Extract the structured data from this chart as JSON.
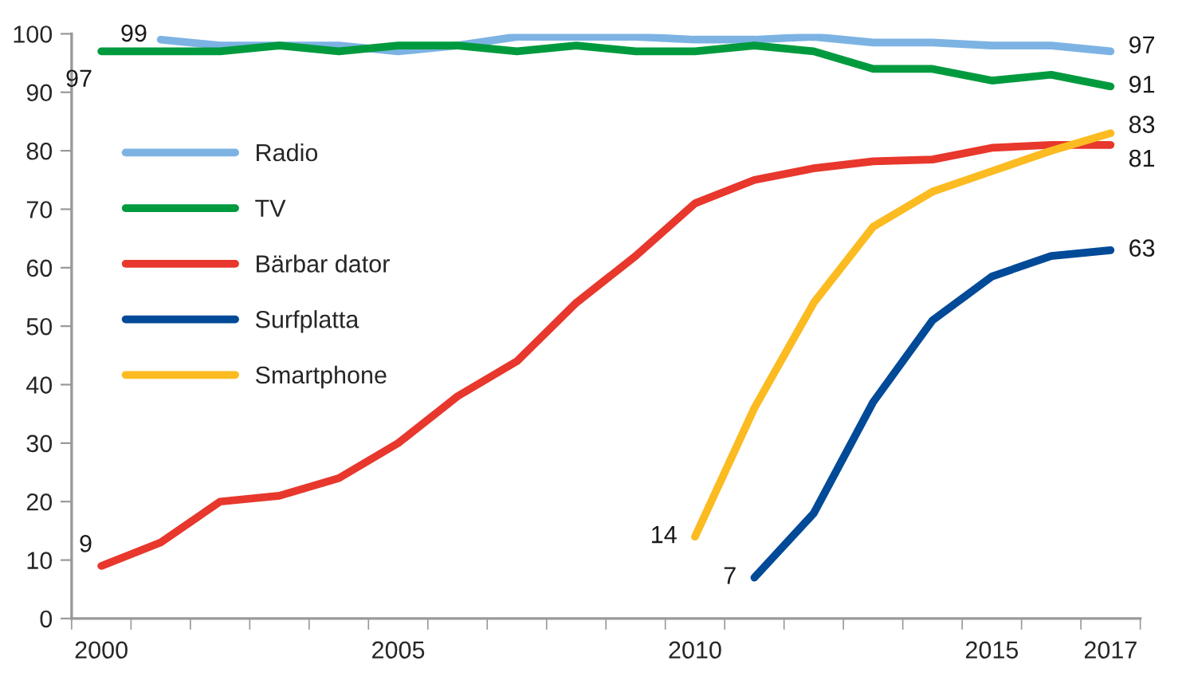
{
  "chart_data": {
    "type": "line",
    "categories": [
      "2000",
      null,
      null,
      null,
      null,
      "2005",
      null,
      null,
      null,
      null,
      "2010",
      null,
      null,
      null,
      null,
      "2015",
      null,
      "2017"
    ],
    "ylim": [
      0,
      100
    ],
    "yticks": [
      0,
      10,
      20,
      30,
      40,
      50,
      60,
      70,
      80,
      90,
      100
    ],
    "grid": false,
    "legend": "left",
    "marker": "none",
    "line_style": "solid",
    "series": [
      {
        "name": "Radio",
        "color": "#7cb3e3",
        "values": [
          null,
          99,
          98,
          98,
          98,
          97,
          98,
          99.5,
          99.5,
          99.5,
          99,
          99,
          99.5,
          98.5,
          98.5,
          98,
          98,
          97
        ],
        "value_labels": [
          null,
          "99",
          null,
          null,
          null,
          null,
          null,
          null,
          null,
          null,
          null,
          null,
          null,
          null,
          null,
          null,
          null,
          "97"
        ]
      },
      {
        "name": "TV",
        "color": "#009a3e",
        "values": [
          97,
          97,
          97,
          98,
          97,
          98,
          98,
          97,
          98,
          97,
          97,
          98,
          97,
          94,
          94,
          92,
          93,
          91
        ],
        "value_labels": [
          "97",
          null,
          null,
          null,
          null,
          null,
          null,
          null,
          null,
          null,
          null,
          null,
          null,
          null,
          null,
          null,
          null,
          "91"
        ]
      },
      {
        "name": "Bärbar dator",
        "color": "#e8372c",
        "values": [
          9,
          13,
          20,
          21,
          24,
          30,
          38,
          44,
          54,
          62,
          71,
          75,
          77,
          78.2,
          78.5,
          80.5,
          81,
          81
        ],
        "value_labels": [
          "9",
          null,
          null,
          null,
          null,
          null,
          null,
          null,
          null,
          null,
          null,
          null,
          null,
          null,
          null,
          null,
          null,
          "81"
        ]
      },
      {
        "name": "Surfplatta",
        "color": "#004a98",
        "values": [
          null,
          null,
          null,
          null,
          null,
          null,
          null,
          null,
          null,
          null,
          null,
          7,
          18,
          37,
          51,
          58.5,
          62,
          63
        ],
        "value_labels": [
          null,
          null,
          null,
          null,
          null,
          null,
          null,
          null,
          null,
          null,
          null,
          "7",
          null,
          null,
          null,
          null,
          null,
          "63"
        ]
      },
      {
        "name": "Smartphone",
        "color": "#fbbb21",
        "values": [
          null,
          null,
          null,
          null,
          null,
          null,
          null,
          null,
          null,
          null,
          14,
          36,
          54,
          67,
          73,
          76.5,
          80,
          83
        ],
        "value_labels": [
          null,
          null,
          null,
          null,
          null,
          null,
          null,
          null,
          null,
          null,
          "14",
          null,
          null,
          null,
          null,
          null,
          null,
          "83"
        ]
      }
    ]
  }
}
